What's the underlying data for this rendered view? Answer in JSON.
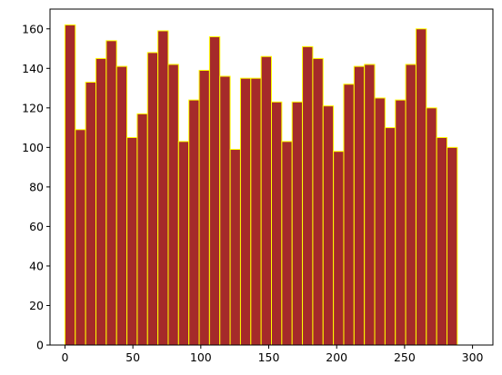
{
  "chart_data": {
    "type": "bar",
    "title": "",
    "xlabel": "",
    "ylabel": "",
    "bin_width": 7.6,
    "bin_start": 0,
    "values": [
      162,
      109,
      133,
      145,
      154,
      141,
      105,
      117,
      148,
      159,
      142,
      103,
      124,
      139,
      156,
      136,
      99,
      135,
      135,
      146,
      123,
      103,
      123,
      151,
      145,
      121,
      98,
      132,
      141,
      142,
      125,
      110,
      124,
      142,
      160,
      120,
      105,
      100
    ],
    "xlim": [
      -11,
      315
    ],
    "ylim": [
      0,
      170
    ],
    "xticks": [
      0,
      50,
      100,
      150,
      200,
      250,
      300
    ],
    "yticks": [
      0,
      20,
      40,
      60,
      80,
      100,
      120,
      140,
      160
    ],
    "xtick_labels": [
      "0",
      "50",
      "100",
      "150",
      "200",
      "250",
      "300"
    ],
    "ytick_labels": [
      "0",
      "20",
      "40",
      "60",
      "80",
      "100",
      "120",
      "140",
      "160"
    ],
    "grid": false,
    "legend": "none",
    "colors": {
      "bar_fill": "#a52a2a",
      "bar_edge": "#ffff00",
      "axis": "#000000"
    }
  }
}
